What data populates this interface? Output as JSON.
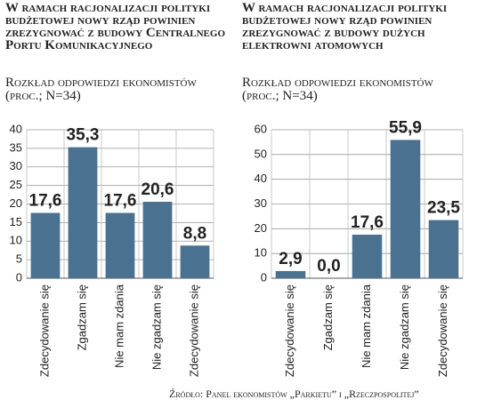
{
  "chart_data": [
    {
      "type": "bar",
      "title": "W ramach racjonalizacji polityki budżetowej nowy rząd powinien zrezygnować z budowy Centralnego Portu Komunikacyjnego",
      "subtitle": "Rozkład odpowiedzi ekonomistów (proc.; N=34)",
      "categories": [
        "Zdecydowanie się",
        "Zgadzam się",
        "Nie mam zdania",
        "Nie zgadzam się",
        "Zdecydowanie się"
      ],
      "values": [
        17.6,
        35.3,
        17.6,
        20.6,
        8.8
      ],
      "value_labels": [
        "17,6",
        "35,3",
        "17,6",
        "20,6",
        "8,8"
      ],
      "color": "#4a7190",
      "ylim": [
        0,
        40
      ],
      "yticks": [
        0,
        5,
        10,
        15,
        20,
        25,
        30,
        35,
        40
      ],
      "grid": true
    },
    {
      "type": "bar",
      "title": "W ramach racjonalizacji polityki budżetowej nowy rząd powinien zrezygnować z budowy dużych elektrowni atomowych",
      "subtitle": "Rozkład odpowiedzi ekonomistów (proc.; N=34)",
      "categories": [
        "Zdecydowanie się",
        "Zgadzam się",
        "Nie mam zdania",
        "Nie zgadzam się",
        "Zdecydowanie się"
      ],
      "values": [
        2.9,
        0.0,
        17.6,
        55.9,
        23.5
      ],
      "value_labels": [
        "2,9",
        "0,0",
        "17,6",
        "55,9",
        "23,5"
      ],
      "color": "#4a7190",
      "ylim": [
        0,
        60
      ],
      "yticks": [
        0,
        10,
        20,
        30,
        40,
        50,
        60
      ],
      "grid": true
    }
  ],
  "source": "Źródło: Panel ekonomistów „Parkietu” i „Rzeczpospolitej”"
}
